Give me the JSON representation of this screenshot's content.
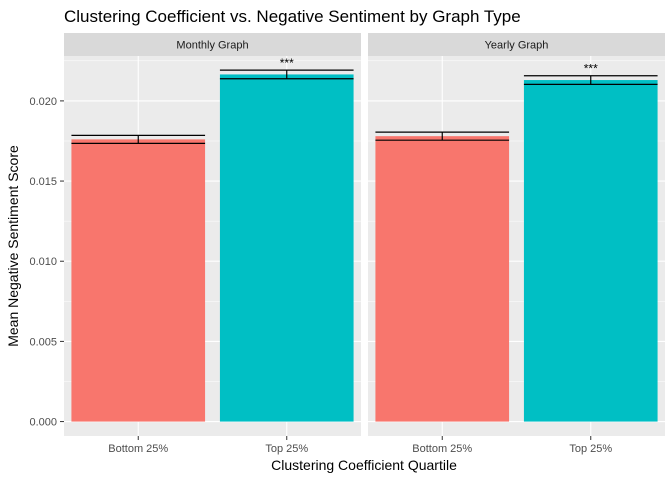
{
  "chart_data": {
    "type": "bar",
    "title": "Clustering Coefficient vs. Negative Sentiment by Graph Type",
    "xlabel": "Clustering Coefficient Quartile",
    "ylabel": "Mean Negative Sentiment Score",
    "ylim": [
      -0.0009,
      0.0228
    ],
    "yticks": [
      0.0,
      0.005,
      0.01,
      0.015,
      0.02
    ],
    "ytick_labels": [
      "0.000",
      "0.005",
      "0.010",
      "0.015",
      "0.020"
    ],
    "categories": [
      "Bottom 25%",
      "Top 25%"
    ],
    "colors": [
      "#f8766d",
      "#00bfc4"
    ],
    "grid": true,
    "legend": "none",
    "facets": [
      {
        "name": "Monthly Graph",
        "values": [
          0.0176,
          0.02165
        ],
        "errors": [
          0.00025,
          0.00027
        ],
        "annotations": [
          "",
          "***"
        ]
      },
      {
        "name": "Yearly Graph",
        "values": [
          0.0178,
          0.0213
        ],
        "errors": [
          0.00025,
          0.00027
        ],
        "annotations": [
          "",
          "***"
        ]
      }
    ]
  }
}
